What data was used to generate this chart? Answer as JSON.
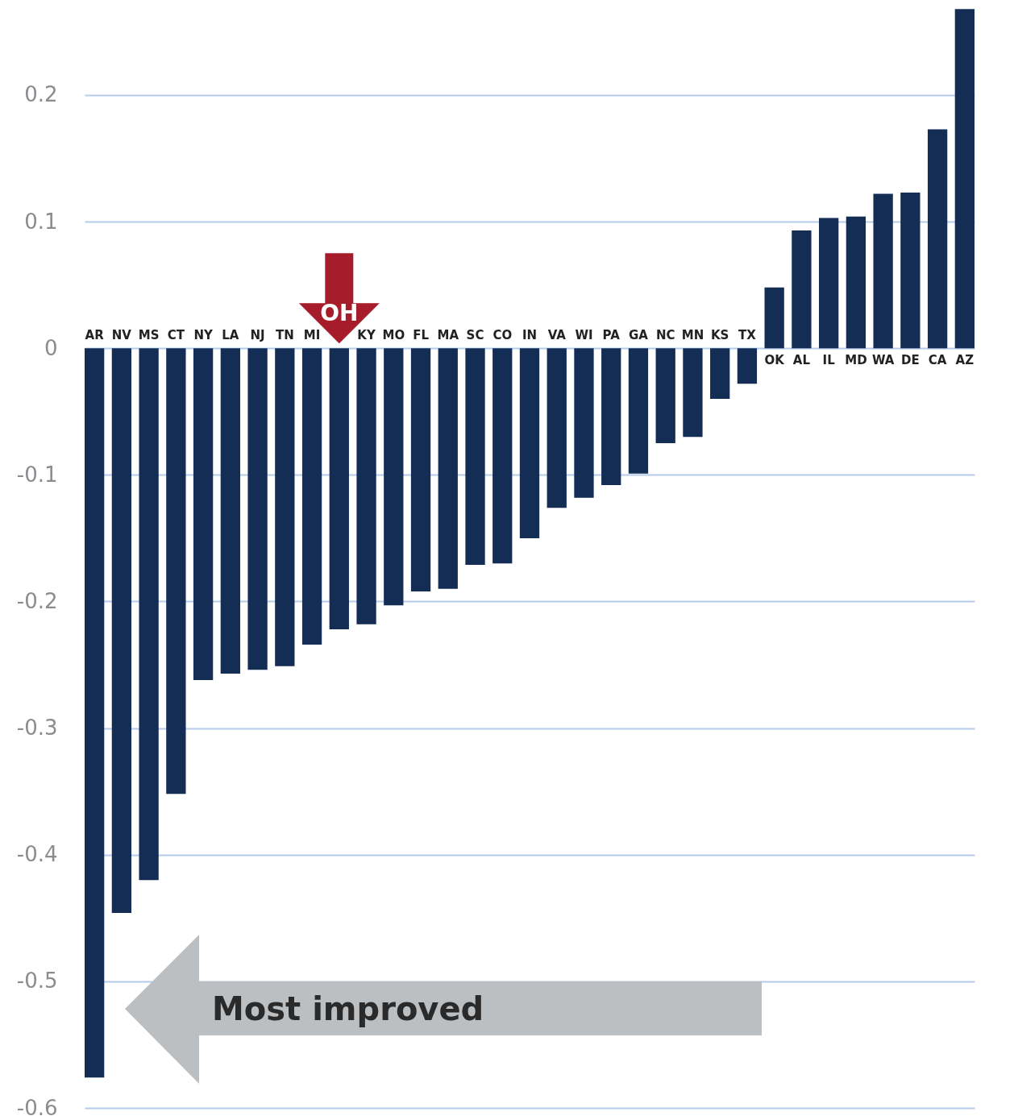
{
  "chart_data": {
    "type": "bar",
    "categories": [
      "AR",
      "NV",
      "MS",
      "CT",
      "NY",
      "LA",
      "NJ",
      "TN",
      "MI",
      null,
      "KY",
      "MO",
      "FL",
      "MA",
      "SC",
      "CO",
      "IN",
      "VA",
      "WI",
      "PA",
      "GA",
      "NC",
      "MN",
      "KS",
      "TX",
      "OK",
      "AL",
      "IL",
      "MD",
      "WA",
      "DE",
      "CA",
      "AZ"
    ],
    "values": [
      -0.576,
      -0.446,
      -0.42,
      -0.352,
      -0.262,
      -0.257,
      -0.254,
      -0.251,
      -0.234,
      -0.222,
      -0.218,
      -0.203,
      -0.192,
      -0.19,
      -0.171,
      -0.17,
      -0.15,
      -0.126,
      -0.118,
      -0.108,
      -0.099,
      -0.075,
      -0.07,
      -0.04,
      -0.028,
      0.048,
      0.093,
      0.103,
      0.104,
      0.122,
      0.123,
      0.173,
      0.268
    ],
    "color": "#132d54",
    "ylim": [
      -0.6,
      0.27
    ],
    "yticks": [
      -0.6,
      -0.5,
      -0.4,
      -0.3,
      -0.2,
      -0.1,
      0,
      0.1,
      0.2
    ],
    "grid": "y",
    "annotations": [
      {
        "text": "OH",
        "y": 0
      },
      "Most improved"
    ]
  }
}
